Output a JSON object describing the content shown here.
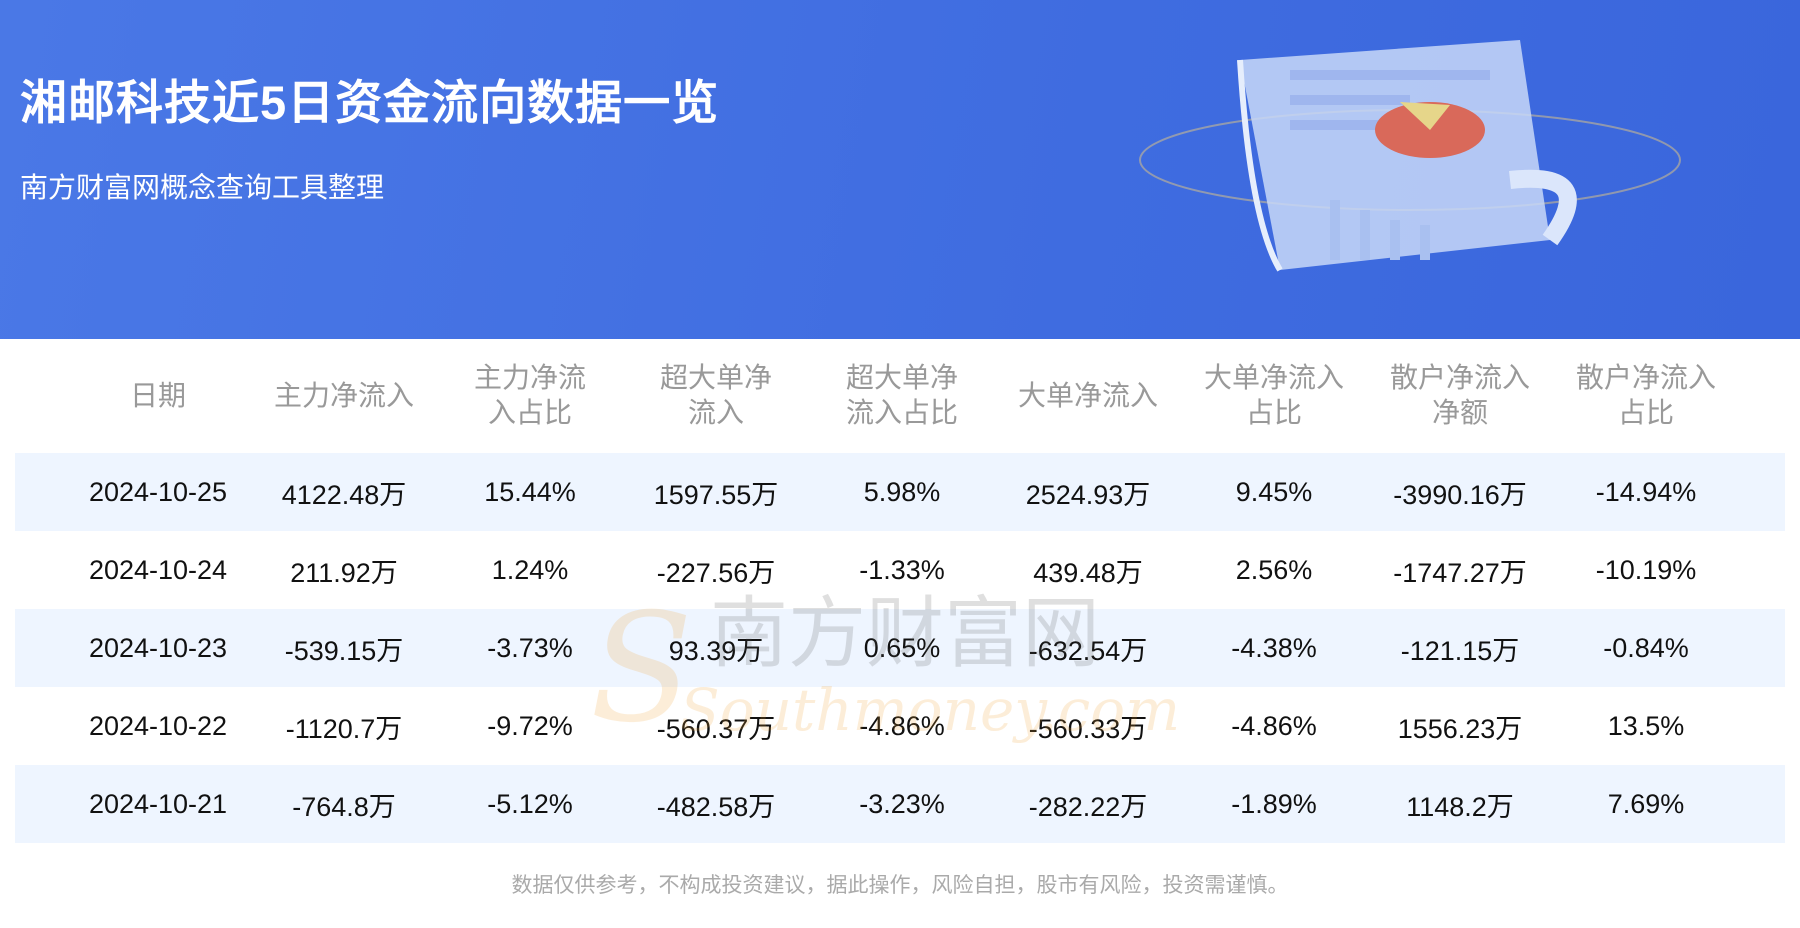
{
  "header": {
    "title": "湘邮科技近5日资金流向数据一览",
    "subtitle": "南方财富网概念查询工具整理"
  },
  "table": {
    "columns": [
      "日期",
      "主力净流入",
      "主力净流入占比",
      "超大单净流入",
      "超大单净流入占比",
      "大单净流入",
      "大单净流入占比",
      "散户净流入净额",
      "散户净流入占比"
    ],
    "rows": [
      [
        "2024-10-25",
        "4122.48万",
        "15.44%",
        "1597.55万",
        "5.98%",
        "2524.93万",
        "9.45%",
        "-3990.16万",
        "-14.94%"
      ],
      [
        "2024-10-24",
        "211.92万",
        "1.24%",
        "-227.56万",
        "-1.33%",
        "439.48万",
        "2.56%",
        "-1747.27万",
        "-10.19%"
      ],
      [
        "2024-10-23",
        "-539.15万",
        "-3.73%",
        "93.39万",
        "0.65%",
        "-632.54万",
        "-4.38%",
        "-121.15万",
        "-0.84%"
      ],
      [
        "2024-10-22",
        "-1120.7万",
        "-9.72%",
        "-560.37万",
        "-4.86%",
        "-560.33万",
        "-4.86%",
        "1556.23万",
        "13.5%"
      ],
      [
        "2024-10-21",
        "-764.8万",
        "-5.12%",
        "-482.58万",
        "-3.23%",
        "-282.22万",
        "-1.89%",
        "1148.2万",
        "7.69%"
      ]
    ]
  },
  "watermark": {
    "cn": "南方财富网",
    "en": "Southmoney.com"
  },
  "footer": "数据仅供参考，不构成投资建议，据此操作，风险自担，股市有风险，投资需谨慎。",
  "colors": {
    "banner": "#4170e2",
    "row_alt": "#eef5ff",
    "header_text": "#999999"
  }
}
